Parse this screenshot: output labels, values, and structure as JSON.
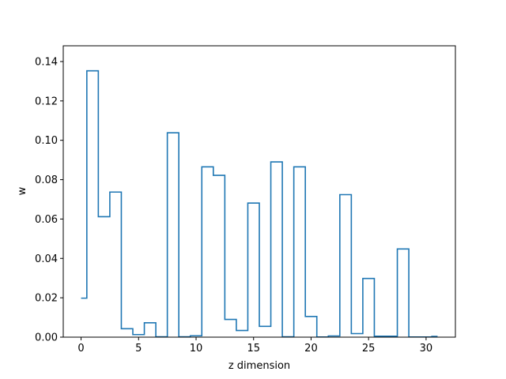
{
  "chart_data": {
    "type": "line",
    "style": "step",
    "title": "",
    "xlabel": "z dimension",
    "ylabel": "w",
    "xlim": [
      -1.55,
      32.55
    ],
    "ylim": [
      0.0,
      0.148
    ],
    "grid": false,
    "legend": "none",
    "line_color": "#1f77b4",
    "x_ticks": [
      0,
      5,
      10,
      15,
      20,
      25,
      30
    ],
    "x_tick_labels": [
      "0",
      "5",
      "10",
      "15",
      "20",
      "25",
      "30"
    ],
    "y_ticks": [
      0.0,
      0.02,
      0.04,
      0.06,
      0.08,
      0.1,
      0.12,
      0.14
    ],
    "y_tick_labels": [
      "0.00",
      "0.02",
      "0.04",
      "0.06",
      "0.08",
      "0.10",
      "0.12",
      "0.14"
    ],
    "series": [
      {
        "x": [
          0,
          1,
          2,
          3,
          4,
          5,
          6,
          7,
          8,
          9,
          10,
          11,
          12,
          13,
          14,
          15,
          16,
          17,
          18,
          19,
          20,
          21,
          22,
          23,
          24,
          25,
          26,
          27,
          28,
          29,
          30,
          31
        ],
        "values": [
          0.0198,
          0.1353,
          0.0612,
          0.0737,
          0.0043,
          0.0013,
          0.0073,
          0.0002,
          0.1038,
          0.0002,
          0.0007,
          0.0865,
          0.0822,
          0.009,
          0.0034,
          0.0681,
          0.0055,
          0.089,
          0.0002,
          0.0865,
          0.0105,
          0.0001,
          0.0006,
          0.0724,
          0.0018,
          0.0298,
          0.0005,
          0.0005,
          0.0448,
          0.0001,
          0.0001,
          0.0004
        ]
      }
    ]
  }
}
